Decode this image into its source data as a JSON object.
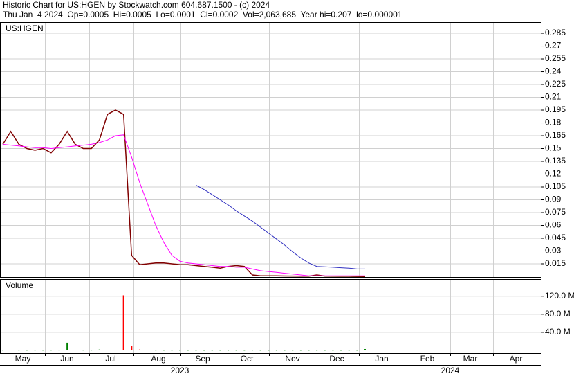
{
  "header": {
    "title": "Historic Chart for US:HGEN by Stockwatch.com 604.687.1500 - (c) 2024",
    "quote": "Thu Jan  4 2024  Op=0.0005  Hi=0.0005  Lo=0.0001  Cl=0.0002  Vol=2,063,685  Year hi=0.207  lo=0.000001"
  },
  "chart_data": [
    {
      "type": "line",
      "label": "US:HGEN",
      "ylim": [
        0,
        0.298
      ],
      "yticks": [
        0.015,
        0.03,
        0.045,
        0.06,
        0.075,
        0.09,
        0.105,
        0.12,
        0.135,
        0.15,
        0.165,
        0.18,
        0.195,
        0.21,
        0.225,
        0.24,
        0.255,
        0.27,
        0.285
      ],
      "grid": true,
      "series": [
        {
          "color": "#800000",
          "values": [
            0.155,
            0.17,
            0.155,
            0.15,
            0.148,
            0.15,
            0.145,
            0.155,
            0.17,
            0.155,
            0.15,
            0.15,
            0.16,
            0.19,
            0.195,
            0.19,
            0.025,
            0.014,
            0.015,
            0.016,
            0.016,
            0.015,
            0.014,
            0.014,
            0.013,
            0.012,
            0.011,
            0.01,
            0.012,
            0.013,
            0.012,
            0.002,
            0.001,
            0.001,
            0.001,
            0.0008,
            0.0007,
            0.0006,
            0.0006,
            0.002,
            0.0007,
            0.0006,
            0.0005,
            0.0005,
            0.0003,
            0.0002
          ]
        },
        {
          "color": "#ff00ff",
          "values": [
            0.155,
            0.154,
            0.153,
            0.152,
            0.151,
            0.151,
            0.15,
            0.151,
            0.152,
            0.153,
            0.154,
            0.155,
            0.157,
            0.16,
            0.165,
            0.166,
            0.14,
            0.11,
            0.085,
            0.06,
            0.04,
            0.025,
            0.018,
            0.016,
            0.015,
            0.014,
            0.013,
            0.012,
            0.012,
            0.011,
            0.011,
            0.009,
            0.007,
            0.006,
            0.005,
            0.004,
            0.003,
            0.002,
            0.001,
            0.001,
            0.001,
            0.001,
            0.001,
            0.001,
            0.001,
            0.001
          ]
        },
        {
          "color": "#3030c0",
          "values": [
            null,
            null,
            null,
            null,
            null,
            null,
            null,
            null,
            null,
            null,
            null,
            null,
            null,
            null,
            null,
            null,
            null,
            null,
            null,
            null,
            null,
            null,
            null,
            null,
            0.107,
            0.102,
            0.096,
            0.09,
            0.084,
            0.077,
            0.071,
            0.065,
            0.058,
            0.051,
            0.044,
            0.037,
            0.029,
            0.022,
            0.016,
            0.012,
            0.0115,
            0.011,
            0.0105,
            0.01,
            0.009,
            0.009
          ]
        }
      ]
    },
    {
      "type": "bar",
      "label": "Volume",
      "ylim": [
        0,
        158
      ],
      "yticks": [
        {
          "value": 40,
          "label": "40.0 M"
        },
        {
          "value": 80,
          "label": "80.0 M"
        },
        {
          "value": 120,
          "label": "120.0 M"
        }
      ],
      "values": [
        0.5,
        0.8,
        0.5,
        0.4,
        0.5,
        0.4,
        0.5,
        0.6,
        17,
        0.8,
        0.5,
        0.5,
        2,
        1.5,
        1,
        122,
        10,
        2,
        1,
        0.5,
        0.4,
        0.4,
        0.3,
        0.3,
        0.3,
        0.3,
        0.3,
        0.3,
        0.3,
        0.3,
        0.3,
        0.5,
        0.3,
        0.3,
        0.3,
        0.3,
        0.3,
        0.3,
        0.3,
        0.3,
        0.3,
        0.3,
        0.3,
        0.3,
        0.3,
        3
      ],
      "colors": [
        "#008000",
        "#008000",
        "#008000",
        "#008000",
        "#008000",
        "#008000",
        "#008000",
        "#008000",
        "#008000",
        "#008000",
        "#008000",
        "#008000",
        "#008000",
        "#008000",
        "#008000",
        "#ff0000",
        "#ff0000",
        "#ff0000",
        "#008000",
        "#008000",
        "#008000",
        "#008000",
        "#008000",
        "#008000",
        "#008000",
        "#008000",
        "#008000",
        "#008000",
        "#008000",
        "#008000",
        "#008000",
        "#008000",
        "#008000",
        "#008000",
        "#008000",
        "#008000",
        "#008000",
        "#008000",
        "#008000",
        "#008000",
        "#008000",
        "#008000",
        "#008000",
        "#008000",
        "#008000",
        "#008000"
      ],
      "months": [
        "May",
        "Jun",
        "Jul",
        "Aug",
        "Sep",
        "Oct",
        "Nov",
        "Dec",
        "Jan",
        "Feb",
        "Mar",
        "Apr"
      ],
      "years": [
        "2023",
        "2024"
      ]
    }
  ]
}
